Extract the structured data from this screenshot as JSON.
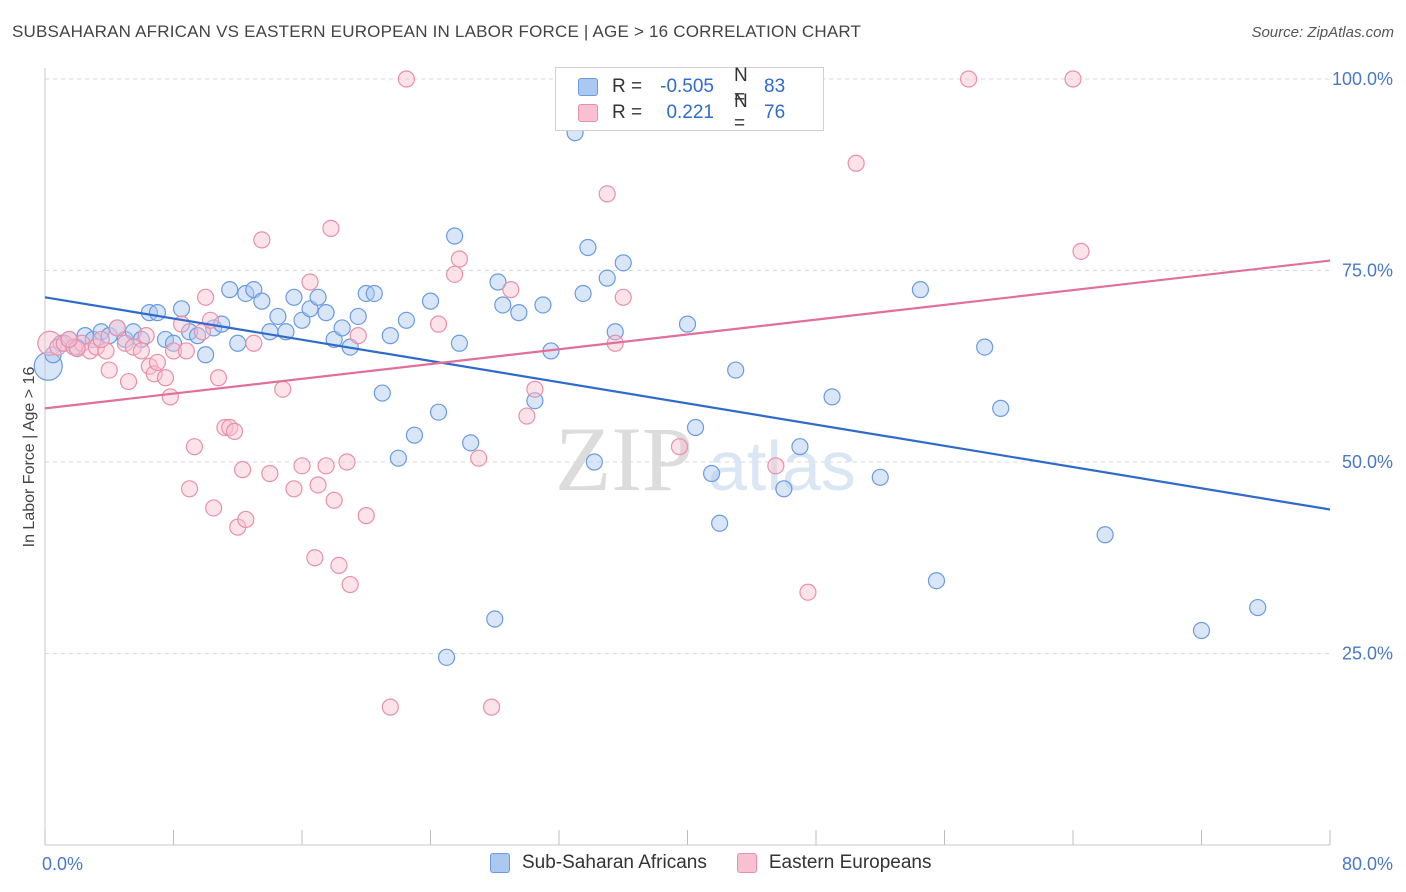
{
  "title": "SUBSAHARAN AFRICAN VS EASTERN EUROPEAN IN LABOR FORCE | AGE > 16 CORRELATION CHART",
  "source": "Source: ZipAtlas.com",
  "watermark": {
    "zip": "ZIP",
    "atlas": "atlas"
  },
  "legend": {
    "rows": [
      {
        "r_label": "R =",
        "r_value": "-0.505",
        "n_label": "N =",
        "n_value": "83",
        "color": "#aac8f0",
        "border": "#6a9be0"
      },
      {
        "r_label": "R =",
        "r_value": "0.221",
        "n_label": "N =",
        "n_value": "76",
        "color": "#f8c0d0",
        "border": "#e890ab"
      }
    ]
  },
  "bottom_legend": [
    "Sub-Saharan Africans",
    "Eastern Europeans"
  ],
  "chart_data": {
    "type": "scatter",
    "ylabel": "In Labor Force | Age > 16",
    "xlabel": "",
    "xlim": [
      0,
      80
    ],
    "ylim": [
      0,
      100
    ],
    "x_tick_labels": [
      {
        "value": 0,
        "label": "0.0%"
      },
      {
        "value": 80,
        "label": "80.0%"
      }
    ],
    "y_tick_labels": [
      {
        "value": 25,
        "label": "25.0%"
      },
      {
        "value": 50,
        "label": "50.0%"
      },
      {
        "value": 75,
        "label": "75.0%"
      },
      {
        "value": 100,
        "label": "100.0%"
      }
    ],
    "grid": "horizontal dashed",
    "series": [
      {
        "name": "Sub-Saharan Africans",
        "color": "#6a9be0",
        "fill": "#aac8f0",
        "trend": {
          "x": [
            0,
            80
          ],
          "y": [
            71.5,
            43.8
          ],
          "color": "#2f6bcb"
        },
        "points": [
          [
            0.2,
            62.5
          ],
          [
            0.5,
            64.0
          ],
          [
            1.0,
            65.5
          ],
          [
            1.5,
            66.0
          ],
          [
            2.0,
            65.0
          ],
          [
            2.5,
            66.5
          ],
          [
            3.0,
            66.0
          ],
          [
            3.5,
            67.0
          ],
          [
            4.0,
            66.5
          ],
          [
            4.5,
            67.5
          ],
          [
            5.0,
            66.0
          ],
          [
            5.5,
            67.0
          ],
          [
            6.0,
            66.0
          ],
          [
            6.5,
            69.5
          ],
          [
            7.0,
            69.5
          ],
          [
            7.5,
            66.0
          ],
          [
            8.0,
            65.5
          ],
          [
            8.5,
            70.0
          ],
          [
            9.0,
            67.0
          ],
          [
            9.5,
            66.5
          ],
          [
            10.0,
            64.0
          ],
          [
            10.5,
            67.5
          ],
          [
            11.0,
            68.0
          ],
          [
            11.5,
            72.5
          ],
          [
            12.0,
            65.5
          ],
          [
            12.5,
            72.0
          ],
          [
            13.0,
            72.5
          ],
          [
            13.5,
            71.0
          ],
          [
            14.0,
            67.0
          ],
          [
            14.5,
            69.0
          ],
          [
            15.0,
            67.0
          ],
          [
            15.5,
            71.5
          ],
          [
            16.0,
            68.5
          ],
          [
            16.5,
            70.0
          ],
          [
            17.0,
            71.5
          ],
          [
            17.5,
            69.5
          ],
          [
            18.0,
            66.0
          ],
          [
            18.5,
            67.5
          ],
          [
            19.0,
            65.0
          ],
          [
            19.5,
            69.0
          ],
          [
            20.0,
            72.0
          ],
          [
            20.5,
            72.0
          ],
          [
            21.0,
            59.0
          ],
          [
            21.5,
            66.5
          ],
          [
            22.0,
            50.5
          ],
          [
            22.5,
            68.5
          ],
          [
            23.0,
            53.5
          ],
          [
            24.0,
            71.0
          ],
          [
            24.5,
            56.5
          ],
          [
            25.0,
            24.5
          ],
          [
            25.5,
            79.5
          ],
          [
            25.8,
            65.5
          ],
          [
            26.5,
            52.5
          ],
          [
            28.0,
            29.5
          ],
          [
            28.2,
            73.5
          ],
          [
            28.5,
            70.5
          ],
          [
            29.5,
            69.5
          ],
          [
            30.5,
            58.0
          ],
          [
            31.0,
            70.5
          ],
          [
            31.5,
            64.5
          ],
          [
            33.0,
            93.0
          ],
          [
            33.5,
            72.0
          ],
          [
            33.8,
            78.0
          ],
          [
            34.2,
            50.0
          ],
          [
            35.0,
            74.0
          ],
          [
            35.5,
            67.0
          ],
          [
            36.0,
            76.0
          ],
          [
            40.0,
            68.0
          ],
          [
            40.5,
            54.5
          ],
          [
            41.5,
            48.5
          ],
          [
            42.0,
            42.0
          ],
          [
            43.0,
            62.0
          ],
          [
            46.0,
            46.5
          ],
          [
            47.0,
            52.0
          ],
          [
            49.0,
            58.5
          ],
          [
            52.0,
            48.0
          ],
          [
            54.5,
            72.5
          ],
          [
            55.5,
            34.5
          ],
          [
            58.5,
            65.0
          ],
          [
            59.5,
            57.0
          ],
          [
            66.0,
            40.5
          ],
          [
            72.0,
            28.0
          ],
          [
            75.5,
            31.0
          ]
        ]
      },
      {
        "name": "Eastern Europeans",
        "color": "#e890ab",
        "fill": "#f8c0d0",
        "trend": {
          "x": [
            0,
            80
          ],
          "y": [
            57.0,
            76.3
          ],
          "color": "#e0709a"
        },
        "points": [
          [
            0.3,
            65.5
          ],
          [
            0.8,
            65.0
          ],
          [
            1.2,
            65.5
          ],
          [
            1.8,
            65.0
          ],
          [
            2.3,
            65.5
          ],
          [
            2.8,
            64.5
          ],
          [
            3.2,
            65.0
          ],
          [
            3.8,
            64.5
          ],
          [
            4.0,
            62.0
          ],
          [
            4.5,
            67.5
          ],
          [
            5.0,
            65.5
          ],
          [
            5.2,
            60.5
          ],
          [
            5.5,
            65.0
          ],
          [
            6.0,
            64.5
          ],
          [
            6.3,
            66.5
          ],
          [
            6.5,
            62.5
          ],
          [
            6.8,
            61.5
          ],
          [
            7.0,
            63.0
          ],
          [
            7.5,
            61.0
          ],
          [
            7.8,
            58.5
          ],
          [
            8.0,
            64.5
          ],
          [
            8.5,
            68.0
          ],
          [
            8.8,
            64.5
          ],
          [
            9.0,
            46.5
          ],
          [
            9.3,
            52.0
          ],
          [
            9.8,
            67.0
          ],
          [
            10.0,
            71.5
          ],
          [
            10.3,
            68.5
          ],
          [
            10.5,
            44.0
          ],
          [
            10.8,
            61.0
          ],
          [
            11.2,
            54.5
          ],
          [
            11.5,
            54.5
          ],
          [
            11.8,
            54.0
          ],
          [
            12.0,
            41.5
          ],
          [
            12.3,
            49.0
          ],
          [
            12.5,
            42.5
          ],
          [
            13.5,
            79.0
          ],
          [
            14.0,
            48.5
          ],
          [
            14.8,
            59.5
          ],
          [
            15.5,
            46.5
          ],
          [
            16.0,
            49.5
          ],
          [
            16.5,
            73.5
          ],
          [
            16.8,
            37.5
          ],
          [
            17.0,
            47.0
          ],
          [
            17.5,
            49.5
          ],
          [
            17.8,
            80.5
          ],
          [
            18.0,
            45.0
          ],
          [
            18.3,
            36.5
          ],
          [
            18.8,
            50.0
          ],
          [
            19.0,
            34.0
          ],
          [
            19.5,
            66.5
          ],
          [
            20.0,
            43.0
          ],
          [
            21.5,
            18.0
          ],
          [
            22.5,
            100.0
          ],
          [
            25.5,
            74.5
          ],
          [
            25.8,
            76.5
          ],
          [
            27.0,
            50.5
          ],
          [
            27.8,
            18.0
          ],
          [
            29.0,
            72.5
          ],
          [
            30.0,
            56.0
          ],
          [
            30.5,
            59.5
          ],
          [
            35.0,
            85.0
          ],
          [
            35.5,
            65.5
          ],
          [
            36.0,
            71.5
          ],
          [
            39.5,
            52.0
          ],
          [
            45.5,
            49.5
          ],
          [
            47.5,
            33.0
          ],
          [
            50.5,
            89.0
          ],
          [
            57.5,
            100.0
          ],
          [
            64.0,
            100.0
          ],
          [
            64.5,
            77.5
          ],
          [
            13.0,
            65.5
          ],
          [
            3.5,
            66.0
          ],
          [
            2.0,
            64.8
          ],
          [
            1.5,
            66.0
          ],
          [
            24.5,
            68.0
          ]
        ]
      }
    ]
  }
}
